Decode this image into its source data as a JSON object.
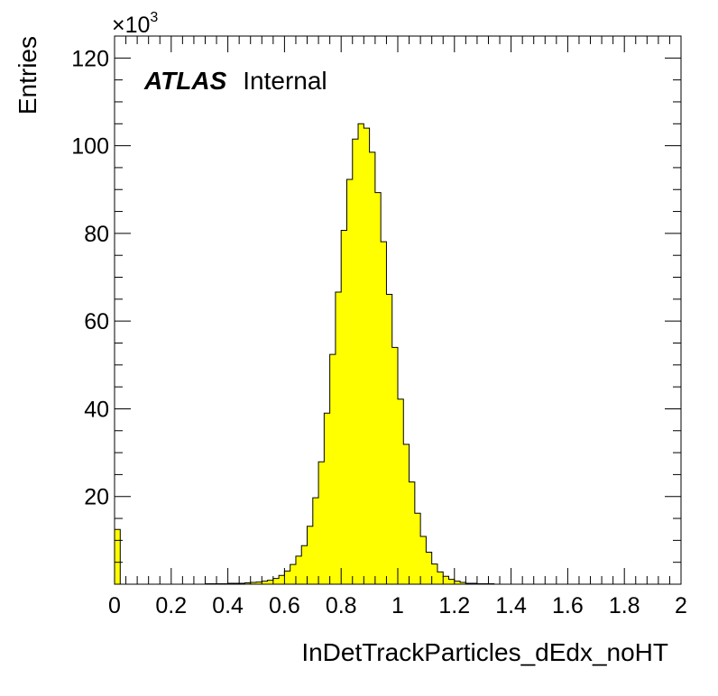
{
  "chart_data": {
    "type": "bar",
    "title": "",
    "xlabel": "InDetTrackParticles_dEdx_noHT",
    "ylabel": "Entries",
    "y_multiplier": "×10",
    "y_multiplier_exponent": "3",
    "label_bold": "ATLAS",
    "label_normal": "Internal",
    "xlim": [
      0,
      2
    ],
    "ylim": [
      0,
      125000
    ],
    "x_ticks": [
      0,
      0.2,
      0.4,
      0.6,
      0.8,
      1,
      1.2,
      1.4,
      1.6,
      1.8,
      2
    ],
    "x_tick_labels": [
      "0",
      "0.2",
      "0.4",
      "0.6",
      "0.8",
      "1",
      "1.2",
      "1.4",
      "1.6",
      "1.8",
      "2"
    ],
    "y_ticks": [
      20000,
      40000,
      60000,
      80000,
      100000,
      120000
    ],
    "y_tick_labels": [
      "20",
      "40",
      "60",
      "80",
      "100",
      "120"
    ],
    "bin_width": 0.02,
    "bin_edges_start": 0,
    "fill_color": "#ffff00",
    "line_color": "#000000",
    "values": [
      12500,
      0,
      0,
      0,
      0,
      0,
      0,
      0,
      0,
      0,
      0,
      0,
      0,
      0,
      0,
      0,
      100,
      100,
      100,
      100,
      200,
      200,
      200,
      300,
      400,
      500,
      700,
      900,
      1300,
      2000,
      3000,
      4500,
      6400,
      8800,
      13200,
      19700,
      27900,
      39000,
      52400,
      66600,
      80700,
      92300,
      101500,
      105000,
      104000,
      98500,
      89300,
      78100,
      66100,
      54000,
      42200,
      31900,
      23300,
      16200,
      10900,
      7300,
      4600,
      2800,
      1800,
      1100,
      700,
      400,
      200,
      200,
      100,
      100,
      100,
      0,
      0,
      0,
      0,
      0,
      0,
      0,
      0,
      0,
      0,
      0,
      0,
      0,
      0,
      0,
      0,
      0,
      0,
      0,
      0,
      0,
      0,
      0,
      0,
      0,
      0,
      0,
      0,
      0,
      0,
      0,
      0,
      0
    ]
  }
}
